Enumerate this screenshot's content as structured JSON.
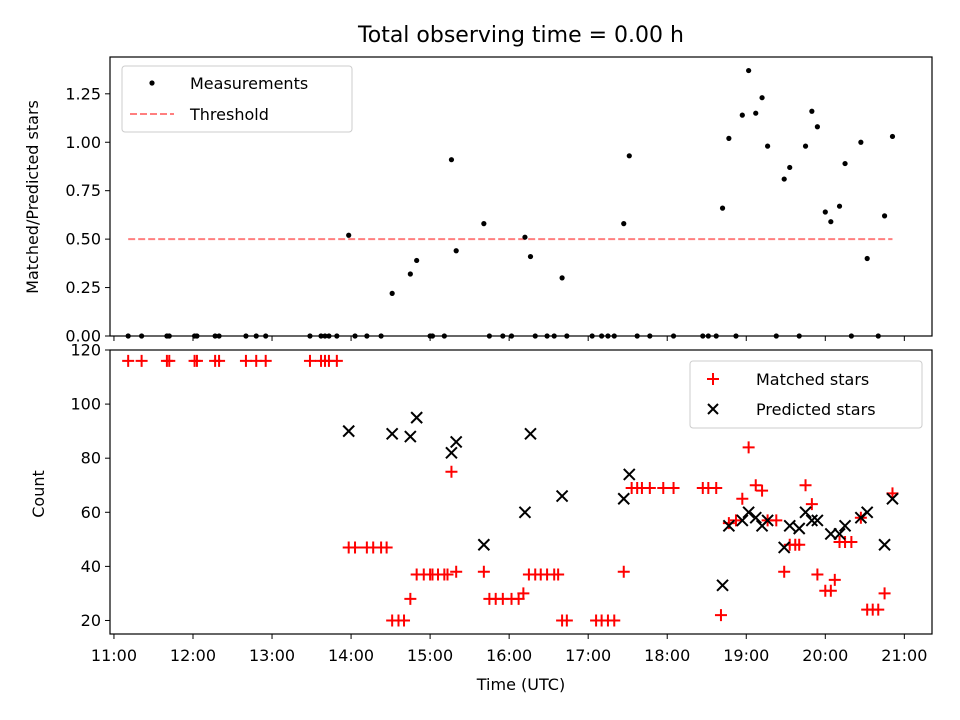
{
  "title": "Total observing time = 0.00 h",
  "chart_data": [
    {
      "type": "scatter",
      "panel": "top",
      "xlabel": "",
      "ylabel": "Matched/Predicted stars",
      "xlim": [
        10.95,
        21.35
      ],
      "ylim": [
        0,
        1.44
      ],
      "yticks": [
        0.0,
        0.25,
        0.5,
        0.75,
        1.0,
        1.25
      ],
      "ytick_labels": [
        "0.00",
        "0.25",
        "0.50",
        "0.75",
        "1.00",
        "1.25"
      ],
      "legend_position": "top-left",
      "series": [
        {
          "name": "Measurements",
          "color": "#000000",
          "x": [
            11.18,
            11.35,
            11.67,
            11.7,
            12.02,
            12.05,
            12.28,
            12.33,
            12.67,
            12.8,
            12.92,
            13.48,
            13.62,
            13.67,
            13.72,
            13.82,
            13.97,
            14.05,
            14.2,
            14.38,
            14.52,
            14.75,
            14.83,
            15.0,
            15.03,
            15.18,
            15.27,
            15.33,
            15.68,
            15.75,
            15.92,
            16.03,
            16.2,
            16.27,
            16.33,
            16.48,
            16.57,
            16.67,
            16.73,
            17.05,
            17.17,
            17.25,
            17.33,
            17.45,
            17.52,
            17.62,
            17.78,
            18.08,
            18.45,
            18.52,
            18.62,
            18.7,
            18.78,
            18.87,
            18.95,
            19.03,
            19.12,
            19.2,
            19.27,
            19.38,
            19.48,
            19.55,
            19.67,
            19.75,
            19.83,
            19.9,
            20.0,
            20.07,
            20.18,
            20.25,
            20.33,
            20.45,
            20.53,
            20.67,
            20.75,
            20.85
          ],
          "y": [
            0,
            0,
            0,
            0,
            0,
            0,
            0,
            0,
            0,
            0,
            0,
            0,
            0,
            0,
            0,
            0,
            0.52,
            0,
            0,
            0,
            0.22,
            0.32,
            0.39,
            0,
            0,
            0,
            0.91,
            0.44,
            0.58,
            0,
            0,
            0,
            0.51,
            0.41,
            0,
            0,
            0,
            0.3,
            0,
            0,
            0,
            0,
            0,
            0.58,
            0.93,
            0,
            0,
            0,
            0,
            0,
            0,
            0.66,
            1.02,
            0,
            1.14,
            1.37,
            1.15,
            1.23,
            0.98,
            0,
            0.81,
            0.87,
            0,
            0.98,
            1.16,
            1.08,
            0.64,
            0.59,
            0.67,
            0.89,
            0,
            1.0,
            0.4,
            0,
            0.62,
            1.03
          ]
        },
        {
          "name": "Threshold",
          "color": "#ff7f7f",
          "x": [
            11.18,
            20.85
          ],
          "y": [
            0.5,
            0.5
          ]
        }
      ]
    },
    {
      "type": "scatter",
      "panel": "bottom",
      "xlabel": "Time (UTC)",
      "ylabel": "Count",
      "xlim": [
        10.95,
        21.35
      ],
      "ylim": [
        15,
        120
      ],
      "yticks": [
        20,
        40,
        60,
        80,
        100,
        120
      ],
      "ytick_labels": [
        "20",
        "40",
        "60",
        "80",
        "100",
        "120"
      ],
      "xticks": [
        11,
        12,
        13,
        14,
        15,
        16,
        17,
        18,
        19,
        20,
        21
      ],
      "xtick_labels": [
        "11:00",
        "12:00",
        "13:00",
        "14:00",
        "15:00",
        "16:00",
        "17:00",
        "18:00",
        "19:00",
        "20:00",
        "21:00"
      ],
      "legend_position": "top-right",
      "series": [
        {
          "name": "Matched stars",
          "color": "#ff0000",
          "x": [
            11.18,
            11.35,
            11.67,
            11.7,
            12.02,
            12.05,
            12.28,
            12.33,
            12.67,
            12.8,
            12.92,
            13.48,
            13.62,
            13.67,
            13.72,
            13.82,
            13.97,
            14.05,
            14.2,
            14.28,
            14.38,
            14.45,
            14.52,
            14.6,
            14.67,
            14.75,
            14.83,
            14.92,
            15.0,
            15.03,
            15.1,
            15.18,
            15.22,
            15.27,
            15.33,
            15.68,
            15.75,
            15.83,
            15.92,
            16.03,
            16.12,
            16.18,
            16.25,
            16.33,
            16.4,
            16.48,
            16.57,
            16.62,
            16.67,
            16.73,
            17.1,
            17.17,
            17.25,
            17.33,
            17.45,
            17.55,
            17.62,
            17.68,
            17.78,
            17.95,
            18.08,
            18.45,
            18.52,
            18.62,
            18.68,
            18.78,
            18.87,
            18.95,
            19.03,
            19.12,
            19.2,
            19.27,
            19.38,
            19.48,
            19.55,
            19.62,
            19.67,
            19.75,
            19.83,
            19.9,
            20.0,
            20.07,
            20.12,
            20.18,
            20.25,
            20.33,
            20.45,
            20.53,
            20.6,
            20.67,
            20.75,
            20.85
          ],
          "y": [
            116,
            116,
            116,
            116,
            116,
            116,
            116,
            116,
            116,
            116,
            116,
            116,
            116,
            116,
            116,
            116,
            47,
            47,
            47,
            47,
            47,
            47,
            20,
            20,
            20,
            28,
            37,
            37,
            37,
            37,
            37,
            37,
            37,
            75,
            38,
            38,
            28,
            28,
            28,
            28,
            28,
            30,
            37,
            37,
            37,
            37,
            37,
            37,
            20,
            20,
            20,
            20,
            20,
            20,
            38,
            69,
            69,
            69,
            69,
            69,
            69,
            69,
            69,
            69,
            22,
            56,
            57,
            65,
            84,
            70,
            68,
            57,
            57,
            38,
            48,
            48,
            48,
            70,
            63,
            37,
            31,
            31,
            35,
            49,
            49,
            49,
            58,
            24,
            24,
            24,
            30,
            67
          ]
        },
        {
          "name": "Predicted stars",
          "color": "#000000",
          "x": [
            13.97,
            14.52,
            14.75,
            14.83,
            15.27,
            15.33,
            15.68,
            16.2,
            16.27,
            16.67,
            17.45,
            17.52,
            18.7,
            18.78,
            18.95,
            19.03,
            19.12,
            19.2,
            19.27,
            19.48,
            19.55,
            19.67,
            19.75,
            19.83,
            19.9,
            20.07,
            20.18,
            20.25,
            20.45,
            20.53,
            20.75,
            20.85
          ],
          "y": [
            90,
            89,
            88,
            95,
            82,
            86,
            48,
            60,
            89,
            66,
            65,
            74,
            33,
            55,
            57,
            60,
            58,
            55,
            57,
            47,
            55,
            54,
            60,
            57,
            57,
            52,
            52,
            55,
            58,
            60,
            48,
            65
          ]
        }
      ]
    }
  ]
}
